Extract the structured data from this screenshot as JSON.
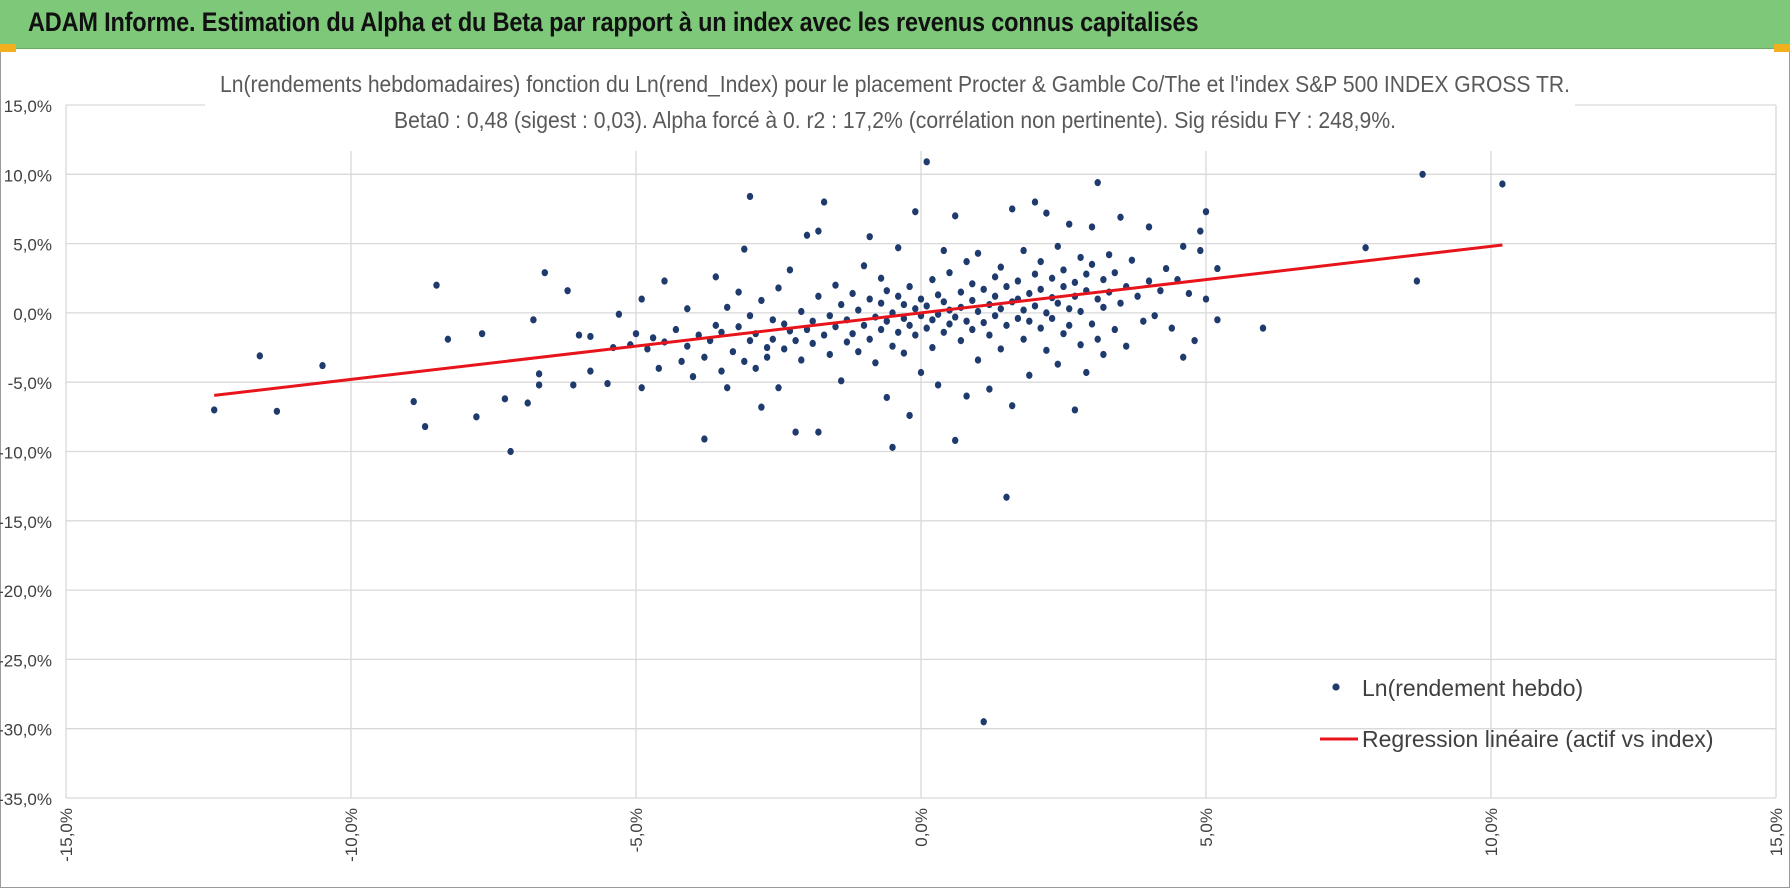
{
  "header": {
    "title": "ADAM Informe. Estimation du Alpha et du Beta par rapport à un index avec les revenus connus capitalisés"
  },
  "colors": {
    "banner": "#7ec87a",
    "points": "#1f3b6e",
    "regression": "#e8141b",
    "grid": "#d9d9d9",
    "corner_accent": "#f2b01e"
  },
  "chart_data": {
    "type": "scatter",
    "title": "Ln(rendements hebdomadaires) fonction du Ln(rend_Index) pour le placement Procter & Gamble Co/The et l'index S&P 500 INDEX GROSS TR.",
    "subtitle": "Beta0 : 0,48 (sigest : 0,03).  Alpha forcé à 0. r2 : 17,2% (corrélation non pertinente). Sig résidu FY : 248,9%.",
    "xlabel": "",
    "ylabel": "",
    "xlim": [
      -15,
      15
    ],
    "ylim": [
      -35,
      15
    ],
    "x_ticks": [
      "-15,0%",
      "-10,0%",
      "-5,0%",
      "0,0%",
      "5,0%",
      "10,0%",
      "15,0%"
    ],
    "y_ticks": [
      "15,0%",
      "10,0%",
      "5,0%",
      "0,0%",
      "-5,0%",
      "-10,0%",
      "-15,0%",
      "-20,0%",
      "-25,0%",
      "-30,0%",
      "-35,0%"
    ],
    "grid": true,
    "legend_position": "bottom-right",
    "series": [
      {
        "name": "Ln(rendement hebdo)",
        "type": "scatter",
        "points": [
          [
            -12.4,
            -7.0
          ],
          [
            -11.6,
            -3.1
          ],
          [
            -11.3,
            -7.1
          ],
          [
            -10.5,
            -3.8
          ],
          [
            -8.9,
            -6.4
          ],
          [
            -8.7,
            -8.2
          ],
          [
            -8.5,
            2.0
          ],
          [
            -8.3,
            -1.9
          ],
          [
            -7.8,
            -7.5
          ],
          [
            -7.7,
            -1.5
          ],
          [
            -7.3,
            -6.2
          ],
          [
            -7.2,
            -10.0
          ],
          [
            -6.9,
            -6.5
          ],
          [
            -6.8,
            -0.5
          ],
          [
            -6.7,
            -4.4
          ],
          [
            -6.7,
            -5.2
          ],
          [
            -6.6,
            2.9
          ],
          [
            -6.2,
            1.6
          ],
          [
            -6.1,
            -5.2
          ],
          [
            -6.0,
            -1.6
          ],
          [
            -5.8,
            -4.2
          ],
          [
            -5.8,
            -1.7
          ],
          [
            -5.5,
            -5.1
          ],
          [
            -5.4,
            -2.5
          ],
          [
            -5.3,
            -0.1
          ],
          [
            -5.1,
            -2.3
          ],
          [
            -5.0,
            -1.5
          ],
          [
            -4.9,
            -5.4
          ],
          [
            -4.9,
            1.0
          ],
          [
            -4.8,
            -2.6
          ],
          [
            -4.7,
            -1.8
          ],
          [
            -4.6,
            -4.0
          ],
          [
            -4.5,
            -2.1
          ],
          [
            -4.5,
            2.3
          ],
          [
            -4.3,
            -1.2
          ],
          [
            -4.2,
            -3.5
          ],
          [
            -4.1,
            0.3
          ],
          [
            -4.1,
            -2.4
          ],
          [
            -4.0,
            -4.6
          ],
          [
            -3.9,
            -1.6
          ],
          [
            -3.8,
            -3.2
          ],
          [
            -3.8,
            -9.1
          ],
          [
            -3.7,
            -2.0
          ],
          [
            -3.6,
            -0.9
          ],
          [
            -3.6,
            2.6
          ],
          [
            -3.5,
            -4.2
          ],
          [
            -3.5,
            -1.4
          ],
          [
            -3.4,
            -5.4
          ],
          [
            -3.4,
            0.4
          ],
          [
            -3.3,
            -2.8
          ],
          [
            -3.2,
            -1.0
          ],
          [
            -3.2,
            1.5
          ],
          [
            -3.1,
            -3.5
          ],
          [
            -3.1,
            4.6
          ],
          [
            -3.0,
            -0.2
          ],
          [
            -3.0,
            -2.0
          ],
          [
            -3.0,
            8.4
          ],
          [
            -2.9,
            -4.0
          ],
          [
            -2.9,
            -1.5
          ],
          [
            -2.8,
            -6.8
          ],
          [
            -2.8,
            0.9
          ],
          [
            -2.7,
            -2.5
          ],
          [
            -2.7,
            -3.2
          ],
          [
            -2.6,
            -0.5
          ],
          [
            -2.6,
            -1.9
          ],
          [
            -2.5,
            1.8
          ],
          [
            -2.5,
            -5.4
          ],
          [
            -2.4,
            -2.6
          ],
          [
            -2.4,
            -0.8
          ],
          [
            -2.3,
            -1.3
          ],
          [
            -2.3,
            3.1
          ],
          [
            -2.2,
            -8.6
          ],
          [
            -2.2,
            -2.0
          ],
          [
            -2.1,
            0.1
          ],
          [
            -2.1,
            -3.4
          ],
          [
            -2.0,
            -1.2
          ],
          [
            -2.0,
            5.6
          ],
          [
            -1.9,
            -0.6
          ],
          [
            -1.9,
            -2.2
          ],
          [
            -1.8,
            -8.6
          ],
          [
            -1.8,
            1.2
          ],
          [
            -1.8,
            5.9
          ],
          [
            -1.7,
            8.0
          ],
          [
            -1.7,
            -1.6
          ],
          [
            -1.6,
            -0.2
          ],
          [
            -1.6,
            -3.0
          ],
          [
            -1.5,
            2.0
          ],
          [
            -1.5,
            -1.0
          ],
          [
            -1.4,
            0.6
          ],
          [
            -1.4,
            -4.9
          ],
          [
            -1.3,
            -2.1
          ],
          [
            -1.3,
            -0.5
          ],
          [
            -1.2,
            1.4
          ],
          [
            -1.2,
            -1.5
          ],
          [
            -1.1,
            0.2
          ],
          [
            -1.1,
            -2.8
          ],
          [
            -1.0,
            3.4
          ],
          [
            -1.0,
            -0.9
          ],
          [
            -0.9,
            1.0
          ],
          [
            -0.9,
            -1.9
          ],
          [
            -0.9,
            5.5
          ],
          [
            -0.8,
            -0.3
          ],
          [
            -0.8,
            -3.6
          ],
          [
            -0.7,
            0.7
          ],
          [
            -0.7,
            -1.2
          ],
          [
            -0.7,
            2.5
          ],
          [
            -0.6,
            -0.6
          ],
          [
            -0.6,
            -6.1
          ],
          [
            -0.6,
            1.6
          ],
          [
            -0.5,
            -2.4
          ],
          [
            -0.5,
            0.0
          ],
          [
            -0.5,
            -9.7
          ],
          [
            -0.4,
            1.2
          ],
          [
            -0.4,
            -1.4
          ],
          [
            -0.4,
            4.7
          ],
          [
            -0.3,
            -0.4
          ],
          [
            -0.3,
            0.6
          ],
          [
            -0.3,
            -2.9
          ],
          [
            -0.2,
            1.9
          ],
          [
            -0.2,
            -0.9
          ],
          [
            -0.2,
            -7.4
          ],
          [
            -0.1,
            0.3
          ],
          [
            -0.1,
            -1.6
          ],
          [
            -0.1,
            7.3
          ],
          [
            0.0,
            -0.2
          ],
          [
            0.0,
            1.0
          ],
          [
            0.0,
            -4.3
          ],
          [
            0.1,
            10.9
          ],
          [
            0.1,
            0.5
          ],
          [
            0.1,
            -1.1
          ],
          [
            0.2,
            2.4
          ],
          [
            0.2,
            -0.5
          ],
          [
            0.2,
            -2.5
          ],
          [
            0.3,
            1.3
          ],
          [
            0.3,
            -0.1
          ],
          [
            0.3,
            -5.2
          ],
          [
            0.4,
            0.8
          ],
          [
            0.4,
            -1.4
          ],
          [
            0.4,
            4.5
          ],
          [
            0.5,
            0.2
          ],
          [
            0.5,
            -0.8
          ],
          [
            0.5,
            2.9
          ],
          [
            0.6,
            -9.2
          ],
          [
            0.6,
            7.0
          ],
          [
            0.6,
            -0.3
          ],
          [
            0.7,
            1.5
          ],
          [
            0.7,
            0.4
          ],
          [
            0.7,
            -2.0
          ],
          [
            0.8,
            -0.6
          ],
          [
            0.8,
            3.7
          ],
          [
            0.8,
            -6.0
          ],
          [
            0.9,
            0.9
          ],
          [
            0.9,
            -1.2
          ],
          [
            0.9,
            2.1
          ],
          [
            1.0,
            0.1
          ],
          [
            1.0,
            -3.4
          ],
          [
            1.0,
            4.3
          ],
          [
            1.1,
            -0.7
          ],
          [
            1.1,
            1.7
          ],
          [
            1.1,
            -29.5
          ],
          [
            1.2,
            0.6
          ],
          [
            1.2,
            -1.6
          ],
          [
            1.2,
            -5.5
          ],
          [
            1.3,
            2.6
          ],
          [
            1.3,
            -0.2
          ],
          [
            1.3,
            1.2
          ],
          [
            1.4,
            -2.6
          ],
          [
            1.4,
            0.3
          ],
          [
            1.4,
            3.3
          ],
          [
            1.5,
            -13.3
          ],
          [
            1.5,
            -0.9
          ],
          [
            1.5,
            1.9
          ],
          [
            1.6,
            0.8
          ],
          [
            1.6,
            7.5
          ],
          [
            1.6,
            -6.7
          ],
          [
            1.7,
            -0.4
          ],
          [
            1.7,
            2.3
          ],
          [
            1.7,
            1.0
          ],
          [
            1.8,
            -1.9
          ],
          [
            1.8,
            0.2
          ],
          [
            1.8,
            4.5
          ],
          [
            1.9,
            1.4
          ],
          [
            1.9,
            -0.6
          ],
          [
            1.9,
            -4.5
          ],
          [
            2.0,
            2.8
          ],
          [
            2.0,
            0.5
          ],
          [
            2.0,
            8.0
          ],
          [
            2.1,
            -1.1
          ],
          [
            2.1,
            1.7
          ],
          [
            2.1,
            3.7
          ],
          [
            2.2,
            0.0
          ],
          [
            2.2,
            -2.7
          ],
          [
            2.2,
            7.2
          ],
          [
            2.3,
            1.1
          ],
          [
            2.3,
            -0.4
          ],
          [
            2.3,
            2.5
          ],
          [
            2.4,
            4.8
          ],
          [
            2.4,
            -3.7
          ],
          [
            2.4,
            0.7
          ],
          [
            2.5,
            1.9
          ],
          [
            2.5,
            -1.5
          ],
          [
            2.5,
            3.1
          ],
          [
            2.6,
            0.3
          ],
          [
            2.6,
            -0.9
          ],
          [
            2.6,
            6.4
          ],
          [
            2.7,
            2.2
          ],
          [
            2.7,
            -7.0
          ],
          [
            2.7,
            1.2
          ],
          [
            2.8,
            -2.3
          ],
          [
            2.8,
            4.0
          ],
          [
            2.8,
            0.1
          ],
          [
            2.9,
            2.8
          ],
          [
            2.9,
            -4.3
          ],
          [
            2.9,
            1.6
          ],
          [
            3.0,
            -0.8
          ],
          [
            3.0,
            3.5
          ],
          [
            3.0,
            6.2
          ],
          [
            3.1,
            1.0
          ],
          [
            3.1,
            9.4
          ],
          [
            3.1,
            -1.9
          ],
          [
            3.2,
            2.4
          ],
          [
            3.2,
            0.4
          ],
          [
            3.2,
            -3.0
          ],
          [
            3.3,
            4.2
          ],
          [
            3.3,
            1.5
          ],
          [
            3.4,
            -1.2
          ],
          [
            3.4,
            2.9
          ],
          [
            3.5,
            6.9
          ],
          [
            3.5,
            0.7
          ],
          [
            3.6,
            1.9
          ],
          [
            3.6,
            -2.4
          ],
          [
            3.7,
            3.8
          ],
          [
            3.8,
            1.2
          ],
          [
            3.9,
            -0.6
          ],
          [
            4.0,
            2.3
          ],
          [
            4.0,
            6.2
          ],
          [
            4.1,
            -0.2
          ],
          [
            4.2,
            1.6
          ],
          [
            4.3,
            3.2
          ],
          [
            4.4,
            -1.1
          ],
          [
            4.5,
            2.4
          ],
          [
            4.6,
            4.8
          ],
          [
            4.6,
            -3.2
          ],
          [
            4.7,
            1.4
          ],
          [
            4.8,
            -2.0
          ],
          [
            4.9,
            5.9
          ],
          [
            4.9,
            4.5
          ],
          [
            5.0,
            7.3
          ],
          [
            5.0,
            1.0
          ],
          [
            5.2,
            3.2
          ],
          [
            5.2,
            -0.5
          ],
          [
            6.0,
            -1.1
          ],
          [
            7.8,
            4.7
          ],
          [
            8.7,
            2.3
          ],
          [
            8.8,
            10.0
          ],
          [
            10.2,
            9.3
          ]
        ]
      },
      {
        "name": "Regression linéaire (actif vs index)",
        "type": "line",
        "points": [
          [
            -12.4,
            -5.95
          ],
          [
            10.2,
            4.9
          ]
        ]
      }
    ]
  }
}
